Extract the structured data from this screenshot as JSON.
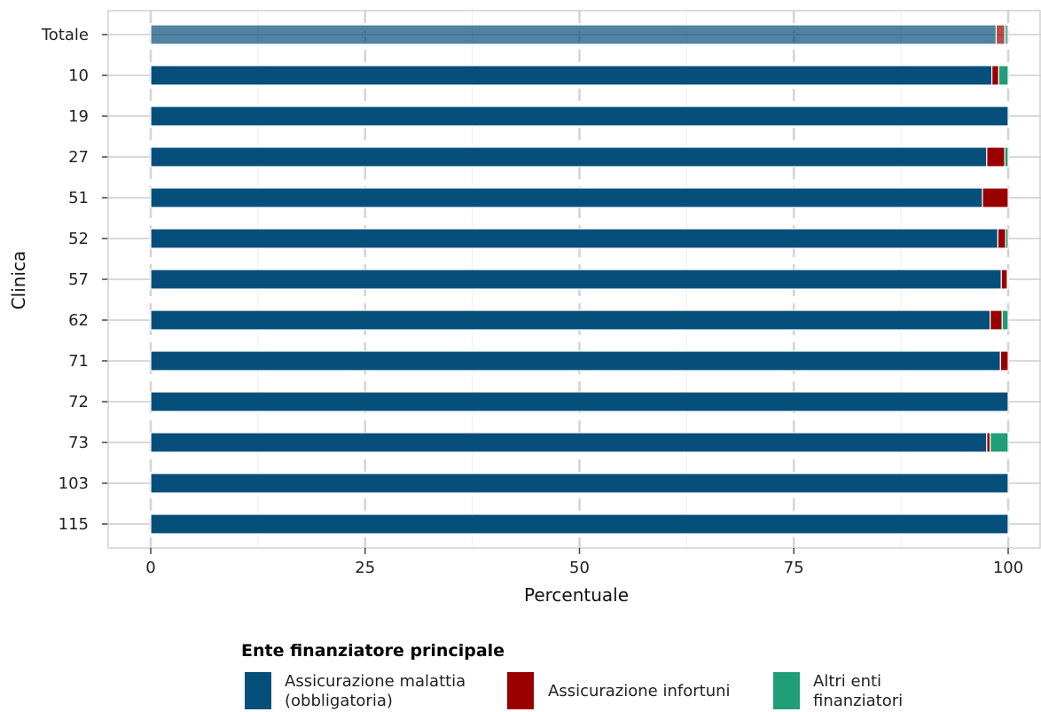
{
  "chart_data": {
    "type": "bar",
    "orientation": "horizontal",
    "stacked": true,
    "xlabel": "Percentuale",
    "ylabel": "Clinica",
    "xlim": [
      0,
      100
    ],
    "xticks": [
      "0",
      "25",
      "50",
      "75",
      "100"
    ],
    "grid": true,
    "categories": [
      "Totale",
      "10",
      "19",
      "27",
      "51",
      "52",
      "57",
      "62",
      "71",
      "72",
      "73",
      "103",
      "115"
    ],
    "highlighted_category": "Totale",
    "series": [
      {
        "name": "Assicurazione malattia (obbligatoria)",
        "color": "#064f7b",
        "values": [
          98.6,
          98.1,
          100,
          97.5,
          97.0,
          98.8,
          99.2,
          97.9,
          99.1,
          100,
          97.5,
          100,
          100
        ]
      },
      {
        "name": "Assicurazione infortuni",
        "color": "#990000",
        "values": [
          1.0,
          0.8,
          0,
          2.1,
          3.0,
          0.9,
          0.7,
          1.4,
          0.9,
          0,
          0.4,
          0,
          0
        ]
      },
      {
        "name": "Altri enti finanziatori",
        "color": "#1f9e77",
        "values": [
          0.4,
          1.1,
          0,
          0.4,
          0,
          0.3,
          0.1,
          0.7,
          0,
          0,
          2.1,
          0,
          0
        ]
      }
    ],
    "legend": {
      "title": "Ente finanziatore principale",
      "position": "bottom",
      "labels": [
        [
          "Assicurazione malattia",
          "(obbligatoria)"
        ],
        [
          "Assicurazione infortuni"
        ],
        [
          "Altri enti",
          "finanziatori"
        ]
      ]
    }
  }
}
